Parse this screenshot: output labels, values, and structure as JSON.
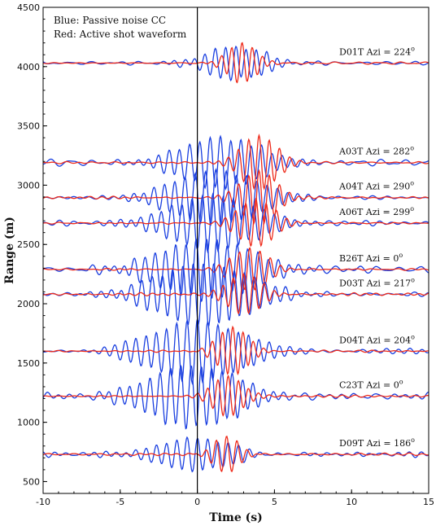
{
  "chart_data": {
    "type": "line",
    "xlabel": "Time (s)",
    "ylabel": "Range (m)",
    "xlim": [
      -10,
      15
    ],
    "ylim": [
      400,
      4500
    ],
    "xticks": [
      "-10",
      "-5",
      "0",
      "5",
      "10",
      "15"
    ],
    "yticks": [
      "500",
      "1000",
      "1500",
      "2000",
      "2500",
      "3000",
      "3500",
      "4000",
      "4500"
    ],
    "legend": {
      "placement": "top-left",
      "lines": [
        "Blue: Passive noise CC",
        "Red: Active shot waveform"
      ]
    },
    "colors": {
      "passive": "#1a3fe0",
      "active": "#ee2a1a",
      "zero_line": "#000000"
    },
    "traces": [
      {
        "label": "D01T  Azi = 224",
        "range": 4030,
        "blue": {
          "t0": 2.5,
          "amp": 140,
          "width": 2.6,
          "freq": 1.5,
          "n": 12
        },
        "red": {
          "t0": 2.9,
          "amp": 170,
          "width": 1.3,
          "freq": 1.5,
          "n": 5
        }
      },
      {
        "label": "A03T  Azi = 282",
        "range": 3190,
        "blue": {
          "t0": 1.5,
          "amp": 210,
          "width": 3.6,
          "freq": 1.5,
          "n": 12
        },
        "red": {
          "t0": 4.0,
          "amp": 230,
          "width": 1.6,
          "freq": 1.5,
          "n": 5
        }
      },
      {
        "label": "A04T  Azi = 290",
        "range": 2895,
        "blue": {
          "t0": 1.2,
          "amp": 230,
          "width": 3.8,
          "freq": 1.5,
          "n": 12
        },
        "red": {
          "t0": 4.0,
          "amp": 230,
          "width": 1.6,
          "freq": 1.5,
          "n": 5
        }
      },
      {
        "label": "A06T  Azi = 299",
        "range": 2680,
        "blue": {
          "t0": 1.0,
          "amp": 230,
          "width": 3.8,
          "freq": 1.5,
          "n": 12
        },
        "red": {
          "t0": 3.8,
          "amp": 200,
          "width": 1.6,
          "freq": 1.5,
          "n": 5
        }
      },
      {
        "label": "B26T  Azi = 0",
        "range": 2290,
        "blue": {
          "t0": 0.6,
          "amp": 250,
          "width": 4.2,
          "freq": 1.5,
          "n": 12
        },
        "red": {
          "t0": 3.4,
          "amp": 180,
          "width": 1.6,
          "freq": 1.5,
          "n": 5
        }
      },
      {
        "label": "D03T  Azi = 217",
        "range": 2080,
        "blue": {
          "t0": 0.4,
          "amp": 260,
          "width": 4.2,
          "freq": 1.5,
          "n": 12
        },
        "red": {
          "t0": 3.0,
          "amp": 170,
          "width": 1.6,
          "freq": 1.5,
          "n": 5
        }
      },
      {
        "label": "D04T  Azi = 204",
        "range": 1600,
        "blue": {
          "t0": 0.0,
          "amp": 260,
          "width": 4.0,
          "freq": 1.5,
          "n": 12
        },
        "red": {
          "t0": 2.3,
          "amp": 200,
          "width": 1.4,
          "freq": 1.5,
          "n": 5
        }
      },
      {
        "label": "C23T  Azi = 0",
        "range": 1220,
        "blue": {
          "t0": -0.4,
          "amp": 260,
          "width": 4.0,
          "freq": 1.5,
          "n": 12
        },
        "red": {
          "t0": 2.0,
          "amp": 170,
          "width": 1.4,
          "freq": 1.5,
          "n": 5
        }
      },
      {
        "label": "D09T  Azi = 186",
        "range": 730,
        "blue": {
          "t0": 0.0,
          "amp": 140,
          "width": 3.2,
          "freq": 1.5,
          "n": 12
        },
        "red": {
          "t0": 1.9,
          "amp": 150,
          "width": 1.2,
          "freq": 1.5,
          "n": 5
        }
      }
    ]
  }
}
